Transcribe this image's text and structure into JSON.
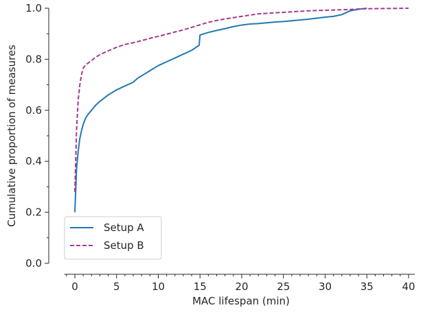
{
  "chart_data": {
    "type": "line",
    "xlabel": "MAC lifespan (min)",
    "ylabel": "Cumulative proportion of measures",
    "xlim": [
      -2,
      41
    ],
    "ylim": [
      0.0,
      1.0
    ],
    "xticks": [
      0,
      5,
      10,
      15,
      20,
      25,
      30,
      35,
      40
    ],
    "xtick_labels": [
      "0",
      "5",
      "10",
      "15",
      "20",
      "25",
      "30",
      "35",
      "40"
    ],
    "yticks": [
      0.0,
      0.2,
      0.4,
      0.6,
      0.8,
      1.0
    ],
    "ytick_labels": [
      "0.0",
      "0.2",
      "0.4",
      "0.6",
      "0.8",
      "1.0"
    ],
    "grid": false,
    "legend_position": "lower-left",
    "series": [
      {
        "name": "Setup A",
        "color": "#1f77b4",
        "style": "solid",
        "x": [
          0,
          0.2,
          0.4,
          0.6,
          0.8,
          1.0,
          1.3,
          1.6,
          2.0,
          2.5,
          3.0,
          4.0,
          5.0,
          6.0,
          7.0,
          7.5,
          8.0,
          9.0,
          10.0,
          11.0,
          12.0,
          13.0,
          14.0,
          14.9,
          15.0,
          16.0,
          17.0,
          18.0,
          19.0,
          20.0,
          21.0,
          22.0,
          23.0,
          24.0,
          25.0,
          26.0,
          27.0,
          28.0,
          29.0,
          30.0,
          31.0,
          32.0,
          33.0,
          34.0,
          35.0
        ],
        "y": [
          0.2,
          0.37,
          0.44,
          0.49,
          0.52,
          0.545,
          0.57,
          0.585,
          0.6,
          0.62,
          0.635,
          0.66,
          0.68,
          0.695,
          0.71,
          0.725,
          0.735,
          0.755,
          0.775,
          0.79,
          0.805,
          0.82,
          0.835,
          0.855,
          0.895,
          0.905,
          0.913,
          0.92,
          0.928,
          0.934,
          0.938,
          0.94,
          0.943,
          0.946,
          0.948,
          0.951,
          0.954,
          0.957,
          0.961,
          0.965,
          0.968,
          0.975,
          0.99,
          0.996,
          1.0
        ]
      },
      {
        "name": "Setup B",
        "color": "#a6358f",
        "style": "dashed",
        "x": [
          0,
          0.2,
          0.4,
          0.6,
          0.8,
          1.0,
          1.3,
          1.6,
          2.0,
          2.5,
          3.0,
          4.0,
          5.0,
          6.0,
          7.0,
          8.0,
          9.0,
          10.0,
          11.0,
          12.0,
          13.0,
          14.0,
          15.0,
          16.0,
          17.0,
          18.0,
          19.0,
          20.0,
          21.0,
          22.0,
          23.0,
          24.0,
          25.0,
          26.0,
          27.0,
          28.0,
          29.0,
          30.0,
          31.0,
          32.0,
          33.0,
          34.0,
          35.0,
          40.0
        ],
        "y": [
          0.28,
          0.52,
          0.64,
          0.7,
          0.74,
          0.765,
          0.778,
          0.785,
          0.795,
          0.808,
          0.818,
          0.833,
          0.847,
          0.858,
          0.865,
          0.873,
          0.882,
          0.89,
          0.898,
          0.907,
          0.915,
          0.925,
          0.935,
          0.945,
          0.952,
          0.958,
          0.963,
          0.968,
          0.973,
          0.978,
          0.98,
          0.982,
          0.984,
          0.986,
          0.988,
          0.99,
          0.991,
          0.992,
          0.993,
          0.994,
          0.995,
          0.997,
          0.998,
          1.0
        ]
      }
    ]
  }
}
